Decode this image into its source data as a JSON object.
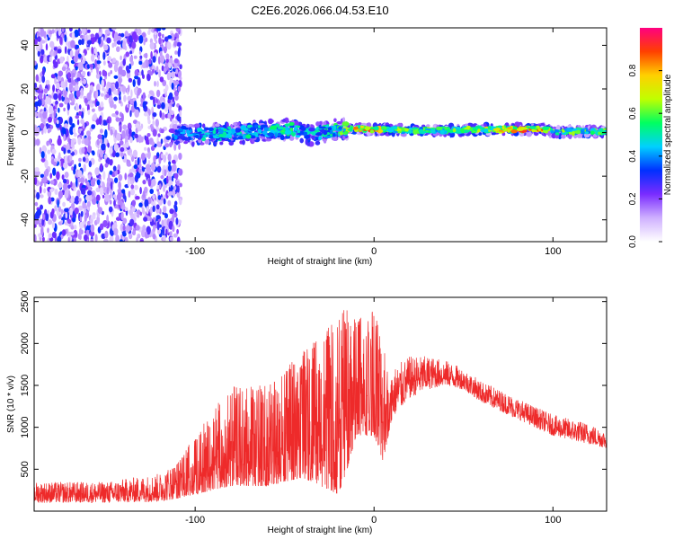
{
  "title": "C2E6.2026.066.04.53.E10",
  "chart_data": [
    {
      "type": "heatmap",
      "title": "C2E6.2026.066.04.53.E10",
      "xlabel": "Height of straight line (km)",
      "ylabel": "Frequency (Hz)",
      "xlim": [
        -190,
        130
      ],
      "ylim": [
        -50,
        48
      ],
      "xticks": [
        -100,
        0,
        100
      ],
      "yticks": [
        -40,
        -20,
        0,
        20,
        40
      ],
      "colorbar": {
        "label": "Normalized spectral amplitude",
        "range": [
          0,
          1
        ],
        "ticks": [
          0.0,
          0.2,
          0.4,
          0.6,
          0.8
        ],
        "colors": [
          "#ffffff",
          "#cfb0ff",
          "#7a2cff",
          "#0030ff",
          "#00d0ff",
          "#00ff60",
          "#c0ff00",
          "#ffd000",
          "#ff4000",
          "#ff0080"
        ]
      },
      "noise_region_x": [
        -190,
        -108
      ],
      "ridge": {
        "x": [
          -115,
          -100,
          -80,
          -60,
          -45,
          -35,
          -20,
          -10,
          0,
          5,
          20,
          40,
          60,
          80,
          95,
          100,
          110,
          130
        ],
        "freq": [
          0.0,
          -1.0,
          -0.5,
          1.0,
          1.5,
          -1.0,
          1.5,
          2.0,
          1.0,
          1.5,
          1.0,
          1.0,
          1.5,
          1.5,
          1.5,
          0.0,
          0.5,
          0.5
        ],
        "amplitude": [
          0.35,
          0.45,
          0.5,
          0.5,
          0.55,
          0.45,
          0.55,
          0.8,
          0.9,
          0.7,
          0.6,
          0.6,
          0.65,
          0.85,
          0.85,
          0.65,
          0.6,
          0.6
        ]
      }
    },
    {
      "type": "line",
      "xlabel": "Height of straight line (km)",
      "ylabel": "SNR (10 * v/v)",
      "xlim": [
        -190,
        130
      ],
      "ylim": [
        0,
        2550
      ],
      "xticks": [
        -100,
        0,
        100
      ],
      "yticks": [
        500,
        1000,
        1500,
        2000,
        2500
      ],
      "color": "#ee2a2a",
      "envelope": {
        "x": [
          -190,
          -150,
          -120,
          -110,
          -100,
          -80,
          -60,
          -40,
          -20,
          -15,
          -10,
          0,
          5,
          10,
          20,
          30,
          40,
          50,
          60,
          80,
          100,
          120,
          130
        ],
        "low": [
          100,
          100,
          110,
          150,
          200,
          300,
          300,
          400,
          200,
          500,
          900,
          900,
          600,
          1100,
          1350,
          1450,
          1500,
          1450,
          1300,
          1100,
          900,
          800,
          750
        ],
        "high": [
          350,
          350,
          450,
          600,
          900,
          1500,
          1500,
          1900,
          2300,
          2500,
          2300,
          2400,
          2000,
          1700,
          1850,
          1850,
          1800,
          1700,
          1550,
          1350,
          1150,
          1050,
          950
        ]
      }
    }
  ]
}
